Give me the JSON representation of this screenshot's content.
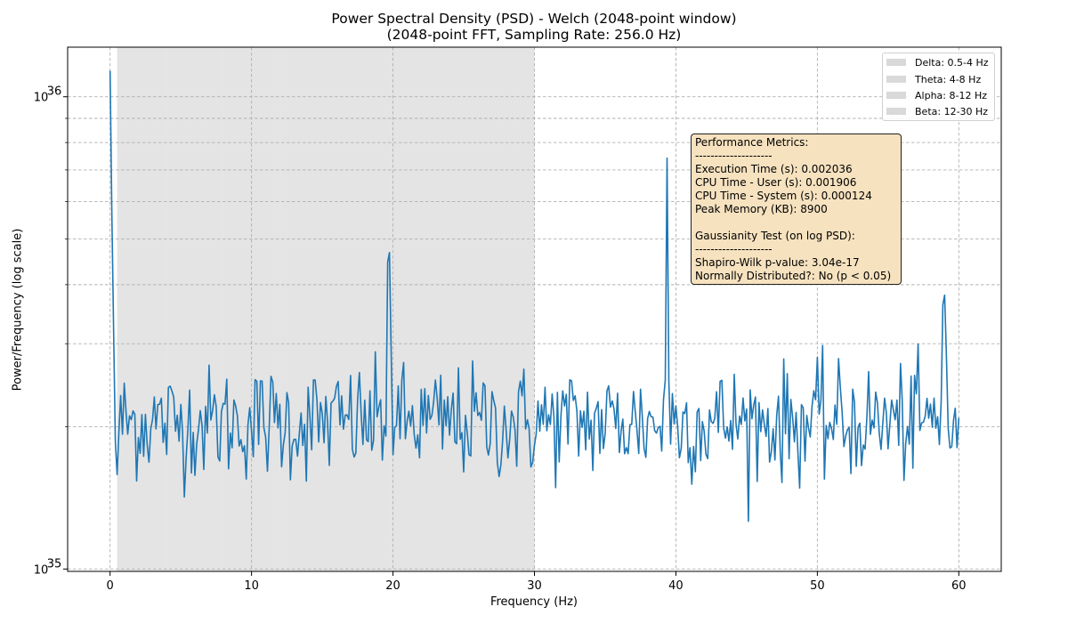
{
  "chart_data": {
    "type": "line",
    "title": "Power Spectral Density (PSD) - Welch (2048-point window)",
    "subtitle": "(2048-point FFT, Sampling Rate: 256.0 Hz)",
    "xlabel": "Frequency (Hz)",
    "ylabel": "Power/Frequency (log scale)",
    "xlim": [
      -3,
      63
    ],
    "ylim_log10": [
      34.995,
      36.105
    ],
    "y_scale": "log",
    "x_ticks": [
      0,
      10,
      20,
      30,
      40,
      50,
      60
    ],
    "x_tick_labels": [
      "0",
      "10",
      "20",
      "30",
      "40",
      "50",
      "60"
    ],
    "y_ticks_log10": [
      35,
      36
    ],
    "y_tick_labels": [
      "10",
      "10"
    ],
    "y_tick_exponents": [
      "35",
      "36"
    ],
    "grid": true,
    "line_color": "#1f77b4",
    "band_color": "#d9d9d9",
    "bands": [
      {
        "name": "Delta: 0.5-4 Hz",
        "range": [
          0.5,
          4
        ]
      },
      {
        "name": "Theta: 4-8 Hz",
        "range": [
          4,
          8
        ]
      },
      {
        "name": "Alpha: 8-12 Hz",
        "range": [
          8,
          12
        ]
      },
      {
        "name": "Beta: 12-30 Hz",
        "range": [
          12,
          30
        ]
      }
    ],
    "legend_position": "top-right",
    "peaks_hz": [
      [
        0.0,
        36.055
      ],
      [
        0.125,
        35.75
      ],
      [
        0.25,
        35.5
      ],
      [
        0.375,
        35.27
      ],
      [
        0.5,
        35.2
      ],
      [
        19.625,
        35.65
      ],
      [
        19.75,
        35.67
      ],
      [
        19.875,
        35.45
      ],
      [
        39.25,
        35.4
      ],
      [
        39.375,
        35.87
      ],
      [
        39.5,
        35.4
      ],
      [
        58.875,
        35.56
      ],
      [
        59.0,
        35.58
      ],
      [
        59.125,
        35.45
      ]
    ],
    "base_level_log10": 35.31,
    "end_x": 60.0
  },
  "metrics_box": {
    "lines": [
      "Performance Metrics:",
      "--------------------",
      "Execution Time (s): 0.002036",
      "CPU Time - User (s): 0.001906",
      "CPU Time - System (s): 0.000124",
      "Peak Memory (KB): 8900",
      "",
      "Gaussianity Test (on log PSD):",
      "--------------------",
      "Shapiro-Wilk p-value: 3.04e-17",
      "Normally Distributed?: No (p < 0.05)"
    ]
  }
}
